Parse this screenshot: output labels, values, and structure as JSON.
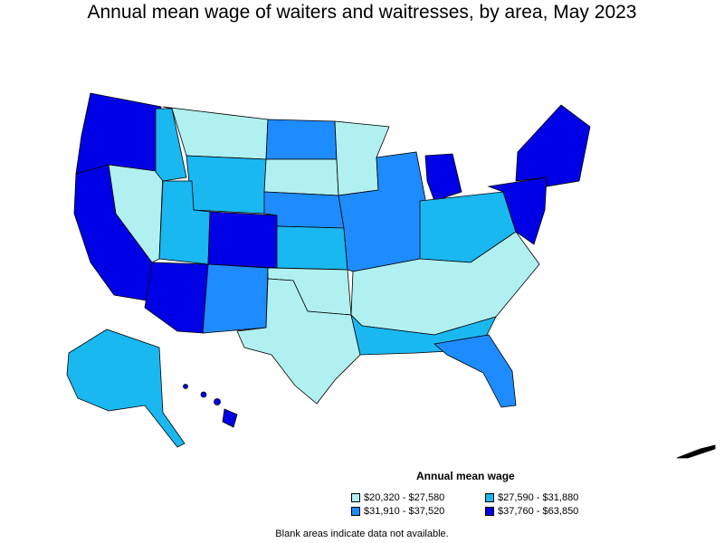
{
  "title": "Annual mean wage of waiters and waitresses, by area, May 2023",
  "legend": {
    "title": "Annual mean wage",
    "items": [
      {
        "label": "$20,320 - $27,580",
        "color": "#b0f0f0"
      },
      {
        "label": "$27,590 - $31,880",
        "color": "#1ab8f0"
      },
      {
        "label": "$31,910 - $37,520",
        "color": "#1e8cff"
      },
      {
        "label": "$37,760 - $63,850",
        "color": "#0000e6"
      }
    ]
  },
  "note": "Blank areas indicate data not available.",
  "regions": [
    {
      "name": "Pacific Northwest",
      "bin": 3
    },
    {
      "name": "California coast",
      "bin": 3
    },
    {
      "name": "Nevada",
      "bin": 0
    },
    {
      "name": "Idaho",
      "bin": 1
    },
    {
      "name": "Montana",
      "bin": 0
    },
    {
      "name": "Wyoming",
      "bin": 1
    },
    {
      "name": "Utah",
      "bin": 1
    },
    {
      "name": "Colorado",
      "bin": 3
    },
    {
      "name": "Arizona",
      "bin": 3
    },
    {
      "name": "New Mexico",
      "bin": 2
    },
    {
      "name": "North Dakota",
      "bin": 2
    },
    {
      "name": "South Dakota",
      "bin": 0
    },
    {
      "name": "Nebraska",
      "bin": 2
    },
    {
      "name": "Kansas",
      "bin": 1
    },
    {
      "name": "Oklahoma",
      "bin": 0
    },
    {
      "name": "Texas",
      "bin": 0
    },
    {
      "name": "Minnesota",
      "bin": 0
    },
    {
      "name": "Upper Midwest",
      "bin": 2
    },
    {
      "name": "Michigan",
      "bin": 3
    },
    {
      "name": "Ohio Valley",
      "bin": 1
    },
    {
      "name": "Southeast",
      "bin": 0
    },
    {
      "name": "Gulf Coast",
      "bin": 1
    },
    {
      "name": "Florida",
      "bin": 2
    },
    {
      "name": "Mid-Atlantic",
      "bin": 3
    },
    {
      "name": "New England",
      "bin": 3
    },
    {
      "name": "Alaska",
      "bin": 1
    },
    {
      "name": "Hawaii",
      "bin": 3
    }
  ]
}
